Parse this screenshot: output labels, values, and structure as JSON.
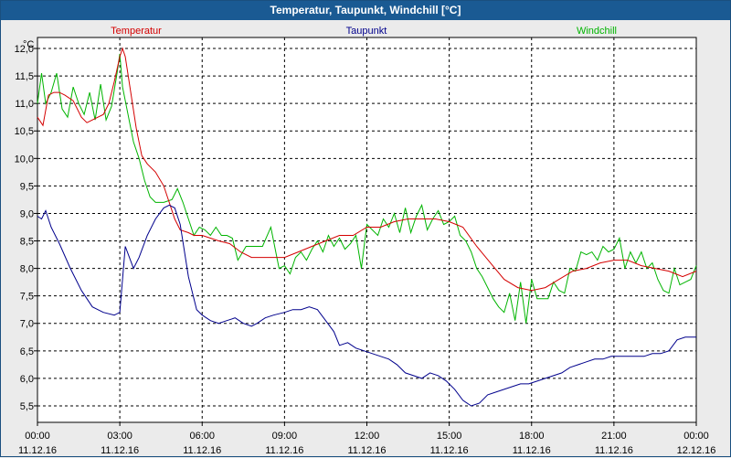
{
  "window": {
    "title": "Temperatur, Taupunkt, Windchill [°C]"
  },
  "chart_data": {
    "type": "line",
    "title": "Temperatur, Taupunkt, Windchill [°C]",
    "ylabel": "°C",
    "ylim": [
      5.2,
      12.2
    ],
    "yticks": [
      5.5,
      6.0,
      6.5,
      7.0,
      7.5,
      8.0,
      8.5,
      9.0,
      9.5,
      10.0,
      10.5,
      11.0,
      11.5,
      12.0
    ],
    "ytick_labels": [
      "5,5",
      "6,0",
      "6,5",
      "7,0",
      "7,5",
      "8,0",
      "8,5",
      "9,0",
      "9,5",
      "10,0",
      "10,5",
      "11,0",
      "11,5",
      "12,0"
    ],
    "xlim": [
      0,
      24
    ],
    "xticks": [
      0,
      3,
      6,
      9,
      12,
      15,
      18,
      21,
      24
    ],
    "xtick_time_labels": [
      "00:00",
      "03:00",
      "06:00",
      "09:00",
      "12:00",
      "15:00",
      "18:00",
      "21:00",
      "00:00"
    ],
    "xtick_date_labels": [
      "11.12.16",
      "11.12.16",
      "11.12.16",
      "11.12.16",
      "11.12.16",
      "11.12.16",
      "11.12.16",
      "11.12.16",
      "12.12.16"
    ],
    "grid": true,
    "legend": "top",
    "series": [
      {
        "name": "Temperatur",
        "color": "#d40000",
        "x": [
          0,
          0.2,
          0.4,
          0.6,
          0.8,
          1,
          1.3,
          1.6,
          1.8,
          2,
          2.2,
          2.4,
          2.6,
          2.8,
          3,
          3.1,
          3.2,
          3.4,
          3.6,
          3.8,
          4,
          4.3,
          4.6,
          4.8,
          5,
          5.2,
          5.5,
          5.7,
          6,
          6.3,
          6.6,
          7,
          7.4,
          7.8,
          8,
          8.5,
          9,
          9.5,
          10,
          10.5,
          11,
          11.5,
          12,
          12.5,
          13,
          13.5,
          14,
          14.5,
          15,
          15.5,
          16,
          16.5,
          17,
          17.5,
          18,
          18.5,
          19,
          19.5,
          20,
          20.5,
          21,
          21.5,
          22,
          22.5,
          23,
          23.5,
          24
        ],
        "y": [
          10.75,
          10.6,
          11.15,
          11.2,
          11.2,
          11.15,
          11.05,
          10.75,
          10.65,
          10.7,
          10.75,
          10.8,
          11.0,
          11.4,
          11.85,
          12.0,
          11.85,
          11.2,
          10.55,
          10.05,
          9.9,
          9.75,
          9.5,
          9.2,
          8.9,
          8.7,
          8.65,
          8.6,
          8.6,
          8.55,
          8.5,
          8.45,
          8.3,
          8.2,
          8.2,
          8.2,
          8.2,
          8.3,
          8.4,
          8.5,
          8.6,
          8.6,
          8.75,
          8.75,
          8.85,
          8.9,
          8.9,
          8.9,
          8.85,
          8.75,
          8.4,
          8.1,
          7.8,
          7.65,
          7.6,
          7.65,
          7.8,
          7.95,
          8.0,
          8.1,
          8.15,
          8.15,
          8.05,
          8.0,
          7.95,
          7.85,
          7.95
        ]
      },
      {
        "name": "Taupunkt",
        "color": "#00008c",
        "x": [
          0,
          0.15,
          0.3,
          0.5,
          0.8,
          1.2,
          1.6,
          2,
          2.4,
          2.8,
          3,
          3.2,
          3.5,
          3.7,
          4,
          4.3,
          4.6,
          4.8,
          5,
          5.2,
          5.5,
          5.8,
          6,
          6.3,
          6.6,
          6.9,
          7.2,
          7.5,
          7.8,
          8,
          8.3,
          8.6,
          9,
          9.3,
          9.6,
          9.9,
          10.2,
          10.5,
          10.8,
          11,
          11.3,
          11.6,
          11.9,
          12.2,
          12.5,
          12.8,
          13.1,
          13.4,
          13.7,
          14,
          14.3,
          14.6,
          14.9,
          15.2,
          15.5,
          15.8,
          16.1,
          16.4,
          16.7,
          17,
          17.3,
          17.6,
          17.9,
          18.2,
          18.5,
          18.8,
          19.1,
          19.4,
          19.7,
          20,
          20.3,
          20.6,
          20.9,
          21.2,
          21.5,
          21.8,
          22.1,
          22.4,
          22.7,
          23,
          23.3,
          23.6,
          24
        ],
        "y": [
          8.95,
          8.9,
          9.05,
          8.75,
          8.45,
          8.0,
          7.6,
          7.3,
          7.2,
          7.15,
          7.2,
          8.4,
          8.0,
          8.2,
          8.6,
          8.9,
          9.1,
          9.15,
          9.1,
          8.8,
          7.85,
          7.25,
          7.15,
          7.05,
          7.0,
          7.05,
          7.1,
          7.0,
          6.95,
          7.0,
          7.1,
          7.15,
          7.2,
          7.25,
          7.25,
          7.3,
          7.25,
          7.05,
          6.85,
          6.6,
          6.65,
          6.55,
          6.5,
          6.45,
          6.4,
          6.35,
          6.25,
          6.1,
          6.05,
          6.0,
          6.1,
          6.05,
          5.95,
          5.8,
          5.6,
          5.5,
          5.55,
          5.7,
          5.75,
          5.8,
          5.85,
          5.9,
          5.9,
          5.95,
          6.0,
          6.05,
          6.1,
          6.2,
          6.25,
          6.3,
          6.35,
          6.35,
          6.4,
          6.4,
          6.4,
          6.4,
          6.4,
          6.45,
          6.45,
          6.5,
          6.7,
          6.75,
          6.75
        ]
      },
      {
        "name": "Windchill",
        "color": "#00b400",
        "x": [
          0,
          0.15,
          0.3,
          0.5,
          0.7,
          0.9,
          1.1,
          1.3,
          1.5,
          1.7,
          1.9,
          2.1,
          2.3,
          2.5,
          2.7,
          2.9,
          3,
          3.1,
          3.3,
          3.5,
          3.7,
          3.9,
          4.1,
          4.3,
          4.6,
          4.9,
          5.1,
          5.3,
          5.5,
          5.7,
          5.9,
          6.1,
          6.3,
          6.5,
          6.7,
          6.9,
          7.1,
          7.3,
          7.6,
          7.9,
          8.2,
          8.5,
          8.8,
          9,
          9.2,
          9.4,
          9.6,
          9.8,
          10,
          10.2,
          10.4,
          10.6,
          10.8,
          11,
          11.2,
          11.4,
          11.6,
          11.8,
          12,
          12.2,
          12.4,
          12.6,
          12.8,
          13,
          13.2,
          13.4,
          13.6,
          13.8,
          14,
          14.2,
          14.4,
          14.6,
          14.8,
          15,
          15.2,
          15.4,
          15.6,
          15.8,
          16,
          16.2,
          16.4,
          16.6,
          16.8,
          17,
          17.2,
          17.4,
          17.6,
          17.8,
          18,
          18.2,
          18.4,
          18.6,
          18.8,
          19,
          19.2,
          19.4,
          19.6,
          19.8,
          20,
          20.2,
          20.4,
          20.6,
          20.8,
          21,
          21.2,
          21.4,
          21.6,
          21.8,
          22,
          22.2,
          22.4,
          22.6,
          22.8,
          23,
          23.2,
          23.4,
          23.6,
          23.8,
          24
        ],
        "y": [
          11.0,
          11.55,
          11.0,
          11.2,
          11.55,
          10.9,
          10.75,
          11.3,
          11.0,
          10.8,
          11.2,
          10.7,
          11.35,
          10.7,
          10.95,
          11.55,
          11.9,
          11.3,
          10.8,
          10.3,
          10.0,
          9.6,
          9.3,
          9.2,
          9.2,
          9.25,
          9.45,
          9.2,
          8.9,
          8.6,
          8.75,
          8.7,
          8.6,
          8.75,
          8.6,
          8.6,
          8.55,
          8.15,
          8.4,
          8.4,
          8.4,
          8.75,
          8.0,
          8.05,
          7.9,
          8.2,
          8.3,
          8.15,
          8.35,
          8.5,
          8.3,
          8.6,
          8.4,
          8.55,
          8.35,
          8.45,
          8.6,
          8.0,
          8.8,
          8.7,
          8.6,
          8.9,
          8.75,
          9.0,
          8.65,
          9.1,
          8.65,
          8.95,
          9.15,
          8.7,
          8.9,
          9.05,
          8.8,
          8.85,
          8.95,
          8.6,
          8.5,
          8.3,
          8.0,
          7.85,
          7.65,
          7.45,
          7.3,
          7.2,
          7.55,
          7.05,
          7.75,
          7.0,
          7.8,
          7.45,
          7.45,
          7.45,
          7.75,
          7.6,
          7.55,
          8.0,
          7.95,
          8.3,
          8.25,
          8.3,
          8.15,
          8.4,
          8.3,
          8.35,
          8.55,
          8.0,
          8.3,
          8.1,
          8.3,
          8.0,
          8.1,
          7.8,
          7.6,
          7.55,
          8.0,
          7.7,
          7.75,
          7.8,
          8.05
        ]
      }
    ]
  }
}
